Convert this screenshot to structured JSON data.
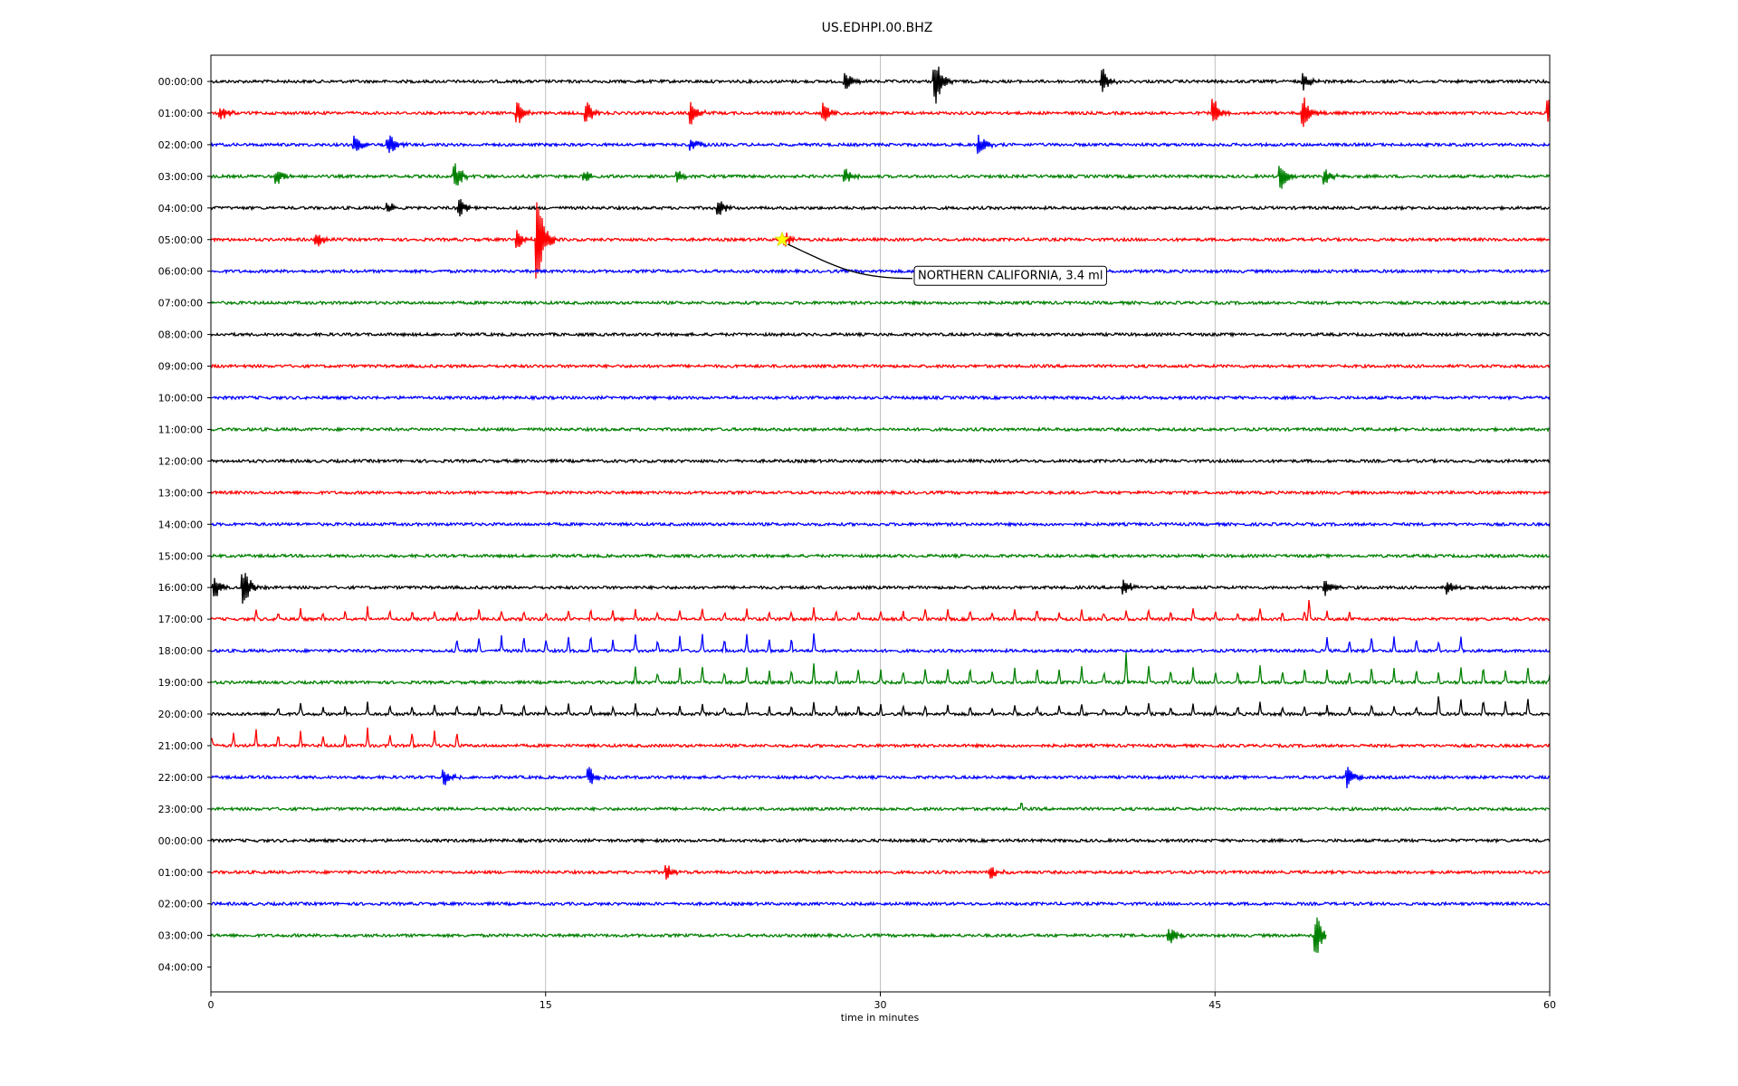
{
  "chart_data": {
    "type": "line",
    "title": "US.EDHPI.00.BHZ",
    "xlabel": "time in minutes",
    "ylabel": "",
    "xlim": [
      0,
      60
    ],
    "xticks": [
      0,
      15,
      30,
      45,
      60
    ],
    "grid": "vertical lines at 15, 30, 45 minutes",
    "row_labels": [
      "00:00:00",
      "01:00:00",
      "02:00:00",
      "03:00:00",
      "04:00:00",
      "05:00:00",
      "06:00:00",
      "07:00:00",
      "08:00:00",
      "09:00:00",
      "10:00:00",
      "11:00:00",
      "12:00:00",
      "13:00:00",
      "14:00:00",
      "15:00:00",
      "16:00:00",
      "17:00:00",
      "18:00:00",
      "19:00:00",
      "20:00:00",
      "21:00:00",
      "22:00:00",
      "23:00:00",
      "00:00:00",
      "01:00:00",
      "02:00:00",
      "03:00:00",
      "04:00:00"
    ],
    "trace_colors": [
      "#000000",
      "#ff0000",
      "#0000ff",
      "#008000"
    ],
    "traces_end_minute_last_row": 50,
    "events": [
      {
        "row": 0,
        "minute": 28.5,
        "amp": 0.5,
        "kind": "burst"
      },
      {
        "row": 0,
        "minute": 32.5,
        "amp": 1.0,
        "kind": "burst"
      },
      {
        "row": 0,
        "minute": 40,
        "amp": 0.5,
        "kind": "burst"
      },
      {
        "row": 0,
        "minute": 49,
        "amp": 0.4,
        "kind": "burst"
      },
      {
        "row": 1,
        "minute": 0.5,
        "amp": 0.3,
        "kind": "burst"
      },
      {
        "row": 1,
        "minute": 13.8,
        "amp": 0.5,
        "kind": "burst"
      },
      {
        "row": 1,
        "minute": 16.9,
        "amp": 0.5,
        "kind": "burst"
      },
      {
        "row": 1,
        "minute": 21.6,
        "amp": 0.5,
        "kind": "burst"
      },
      {
        "row": 1,
        "minute": 27.5,
        "amp": 0.4,
        "kind": "burst"
      },
      {
        "row": 1,
        "minute": 45,
        "amp": 0.6,
        "kind": "burst"
      },
      {
        "row": 1,
        "minute": 49,
        "amp": 0.7,
        "kind": "burst"
      },
      {
        "row": 1,
        "minute": 60,
        "amp": 0.6,
        "kind": "burst"
      },
      {
        "row": 2,
        "minute": 6.5,
        "amp": 0.4,
        "kind": "burst"
      },
      {
        "row": 2,
        "minute": 8,
        "amp": 0.5,
        "kind": "burst"
      },
      {
        "row": 2,
        "minute": 21.6,
        "amp": 0.3,
        "kind": "burst"
      },
      {
        "row": 2,
        "minute": 34.5,
        "amp": 0.4,
        "kind": "burst"
      },
      {
        "row": 3,
        "minute": 3,
        "amp": 0.4,
        "kind": "burst"
      },
      {
        "row": 3,
        "minute": 11,
        "amp": 0.6,
        "kind": "burst"
      },
      {
        "row": 3,
        "minute": 16.8,
        "amp": 0.3,
        "kind": "burst"
      },
      {
        "row": 3,
        "minute": 21,
        "amp": 0.3,
        "kind": "burst"
      },
      {
        "row": 3,
        "minute": 28.5,
        "amp": 0.3,
        "kind": "burst"
      },
      {
        "row": 3,
        "minute": 48,
        "amp": 0.6,
        "kind": "burst"
      },
      {
        "row": 3,
        "minute": 50,
        "amp": 0.4,
        "kind": "burst"
      },
      {
        "row": 4,
        "minute": 8,
        "amp": 0.3,
        "kind": "burst"
      },
      {
        "row": 4,
        "minute": 11.2,
        "amp": 0.4,
        "kind": "burst"
      },
      {
        "row": 4,
        "minute": 22.8,
        "amp": 0.4,
        "kind": "burst"
      },
      {
        "row": 5,
        "minute": 4.8,
        "amp": 0.3,
        "kind": "burst"
      },
      {
        "row": 5,
        "minute": 13.8,
        "amp": 0.4,
        "kind": "burst"
      },
      {
        "row": 5,
        "minute": 14.7,
        "amp": 1.9,
        "kind": "burst"
      },
      {
        "row": 5,
        "minute": 25.8,
        "amp": 0.3,
        "kind": "burst"
      },
      {
        "row": 16,
        "minute": 0.2,
        "amp": 0.5,
        "kind": "burst"
      },
      {
        "row": 16,
        "minute": 1.5,
        "amp": 0.9,
        "kind": "burst"
      },
      {
        "row": 16,
        "minute": 41,
        "amp": 0.4,
        "kind": "burst"
      },
      {
        "row": 16,
        "minute": 50,
        "amp": 0.4,
        "kind": "burst"
      },
      {
        "row": 16,
        "minute": 55.5,
        "amp": 0.3,
        "kind": "burst"
      },
      {
        "row": 17,
        "minute": 49.2,
        "amp": 0.8,
        "kind": "spike"
      },
      {
        "row": 19,
        "minute": 41,
        "amp": 0.6,
        "kind": "spike"
      },
      {
        "row": 20,
        "minute": 55,
        "amp": 0.5,
        "kind": "spike"
      },
      {
        "row": 22,
        "minute": 10.5,
        "amp": 0.4,
        "kind": "burst"
      },
      {
        "row": 22,
        "minute": 17,
        "amp": 0.4,
        "kind": "burst"
      },
      {
        "row": 22,
        "minute": 51,
        "amp": 0.5,
        "kind": "burst"
      },
      {
        "row": 23,
        "minute": 36.3,
        "amp": 0.3,
        "kind": "spike"
      },
      {
        "row": 25,
        "minute": 20.5,
        "amp": 0.3,
        "kind": "burst"
      },
      {
        "row": 25,
        "minute": 35,
        "amp": 0.3,
        "kind": "burst"
      },
      {
        "row": 27,
        "minute": 43,
        "amp": 0.4,
        "kind": "burst"
      },
      {
        "row": 27,
        "minute": 49.6,
        "amp": 0.8,
        "kind": "burst"
      }
    ],
    "spike_trains": [
      {
        "row": 17,
        "from": 2,
        "to": 51,
        "step": 1,
        "amp": 0.35
      },
      {
        "row": 18,
        "from": 11,
        "to": 27,
        "step": 1,
        "amp": 0.55
      },
      {
        "row": 18,
        "from": 50,
        "to": 56,
        "step": 1,
        "amp": 0.5
      },
      {
        "row": 19,
        "from": 19,
        "to": 60,
        "step": 1,
        "amp": 0.55
      },
      {
        "row": 20,
        "from": 3,
        "to": 55,
        "step": 1,
        "amp": 0.35
      },
      {
        "row": 20,
        "from": 56,
        "to": 59,
        "step": 1,
        "amp": 0.6
      },
      {
        "row": 21,
        "from": 0,
        "to": 11,
        "step": 1,
        "amp": 0.55
      }
    ],
    "annotation": {
      "row": 5,
      "minute": 25.6,
      "label": "NORTHERN CALIFORNIA, 3.4 ml",
      "marker": "star",
      "marker_color": "#ffff00"
    }
  }
}
